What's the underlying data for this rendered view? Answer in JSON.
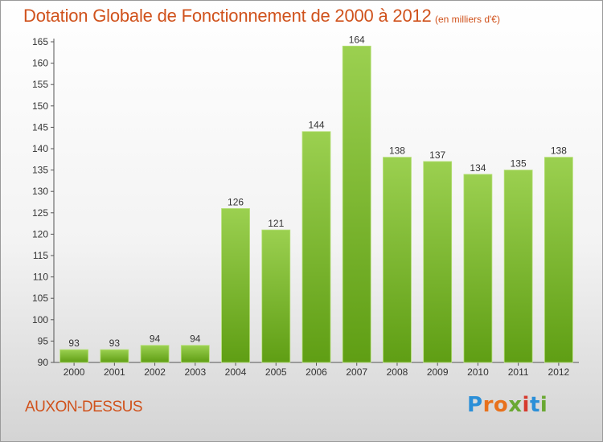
{
  "title": "Dotation Globale de Fonctionnement de 2000 à 2012",
  "subtitle": "(en milliers d'€)",
  "commune": "AUXON-DESSUS",
  "logo": "Proxiti",
  "colors": {
    "title": "#d0521c",
    "bar_top": "#9bd050",
    "bar_bottom": "#5f9e14"
  },
  "chart_data": {
    "type": "bar",
    "categories": [
      "2000",
      "2001",
      "2002",
      "2003",
      "2004",
      "2005",
      "2006",
      "2007",
      "2008",
      "2009",
      "2010",
      "2011",
      "2012"
    ],
    "values": [
      93,
      93,
      94,
      94,
      126,
      121,
      144,
      164,
      138,
      137,
      134,
      135,
      138
    ],
    "ylim": [
      90,
      165
    ],
    "yticks": [
      90,
      95,
      100,
      105,
      110,
      115,
      120,
      125,
      130,
      135,
      140,
      145,
      150,
      155,
      160,
      165
    ],
    "data_labels": [
      "93",
      "93",
      "94",
      "94",
      "126",
      "121",
      "144",
      "164",
      "138",
      "137",
      "134",
      "135",
      "138"
    ],
    "grid": false,
    "xlabel": "",
    "ylabel": ""
  }
}
